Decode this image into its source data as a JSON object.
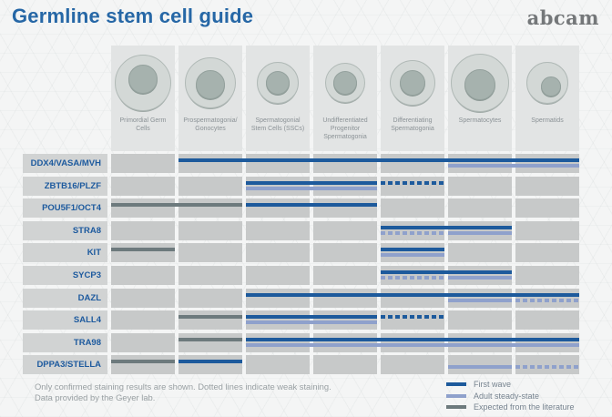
{
  "title": "Germline stem cell guide",
  "logo": "abcam",
  "colors": {
    "first_wave": "#1d5a9c",
    "adult_steady_state": "#8fa1cc",
    "literature": "#6d7a7d"
  },
  "stages": [
    {
      "label": "Primordial Germ Cells",
      "cell": {
        "outer": 62,
        "nucleus": 32,
        "nx": 0,
        "ny": -4
      }
    },
    {
      "label": "Prospermatogonia/ Gonocytes",
      "cell": {
        "outer": 56,
        "nucleus": 32,
        "nx": 0,
        "ny": 2
      }
    },
    {
      "label": "Spermatogonial Stem Cells (SSCs)",
      "cell": {
        "outer": 46,
        "nucleus": 26,
        "nx": 0,
        "ny": 0
      }
    },
    {
      "label": "Undifferentiated Progenitor Spermatogonia",
      "cell": {
        "outer": 44,
        "nucleus": 26,
        "nx": 0,
        "ny": 0
      }
    },
    {
      "label": "Differentiating Spermatogonia",
      "cell": {
        "outer": 50,
        "nucleus": 28,
        "nx": 0,
        "ny": 0
      }
    },
    {
      "label": "Spermatocytes",
      "cell": {
        "outer": 64,
        "nucleus": 34,
        "nx": 0,
        "ny": 2
      }
    },
    {
      "label": "Spermatids",
      "cell": {
        "outer": 46,
        "nucleus": 22,
        "nx": 4,
        "ny": 4
      }
    }
  ],
  "markers": [
    {
      "name": "DDX4/VASA/MVH",
      "segments": [
        {
          "track": 1,
          "color": "first_wave",
          "dash": false,
          "from": 2,
          "to": 7
        },
        {
          "track": 2,
          "color": "adult_steady_state",
          "dash": false,
          "from": 6,
          "to": 7
        }
      ]
    },
    {
      "name": "ZBTB16/PLZF",
      "segments": [
        {
          "track": 1,
          "color": "first_wave",
          "dash": false,
          "from": 3,
          "to": 4
        },
        {
          "track": 1,
          "color": "first_wave",
          "dash": true,
          "from": 5,
          "to": 5
        },
        {
          "track": 2,
          "color": "adult_steady_state",
          "dash": false,
          "from": 3,
          "to": 4
        }
      ]
    },
    {
      "name": "POU5F1/OCT4",
      "segments": [
        {
          "track": 1,
          "color": "literature",
          "dash": false,
          "from": 1,
          "to": 2
        },
        {
          "track": 1,
          "color": "first_wave",
          "dash": false,
          "from": 3,
          "to": 4
        }
      ]
    },
    {
      "name": "STRA8",
      "segments": [
        {
          "track": 1,
          "color": "first_wave",
          "dash": false,
          "from": 5,
          "to": 6
        },
        {
          "track": 2,
          "color": "adult_steady_state",
          "dash": true,
          "from": 5,
          "to": 5
        },
        {
          "track": 2,
          "color": "adult_steady_state",
          "dash": false,
          "from": 6,
          "to": 6
        }
      ]
    },
    {
      "name": "KIT",
      "segments": [
        {
          "track": 1,
          "color": "literature",
          "dash": false,
          "from": 1,
          "to": 1
        },
        {
          "track": 1,
          "color": "first_wave",
          "dash": false,
          "from": 5,
          "to": 5
        },
        {
          "track": 2,
          "color": "adult_steady_state",
          "dash": false,
          "from": 5,
          "to": 5
        }
      ]
    },
    {
      "name": "SYCP3",
      "segments": [
        {
          "track": 1,
          "color": "first_wave",
          "dash": false,
          "from": 5,
          "to": 6
        },
        {
          "track": 2,
          "color": "adult_steady_state",
          "dash": true,
          "from": 5,
          "to": 5
        },
        {
          "track": 2,
          "color": "adult_steady_state",
          "dash": false,
          "from": 6,
          "to": 6
        }
      ]
    },
    {
      "name": "DAZL",
      "segments": [
        {
          "track": 1,
          "color": "first_wave",
          "dash": false,
          "from": 3,
          "to": 7
        },
        {
          "track": 2,
          "color": "adult_steady_state",
          "dash": false,
          "from": 6,
          "to": 6
        },
        {
          "track": 2,
          "color": "adult_steady_state",
          "dash": true,
          "from": 7,
          "to": 7
        }
      ]
    },
    {
      "name": "SALL4",
      "segments": [
        {
          "track": 1,
          "color": "literature",
          "dash": false,
          "from": 2,
          "to": 2
        },
        {
          "track": 1,
          "color": "first_wave",
          "dash": false,
          "from": 3,
          "to": 4
        },
        {
          "track": 1,
          "color": "first_wave",
          "dash": true,
          "from": 5,
          "to": 5
        },
        {
          "track": 2,
          "color": "adult_steady_state",
          "dash": false,
          "from": 3,
          "to": 4
        }
      ]
    },
    {
      "name": "TRA98",
      "segments": [
        {
          "track": 1,
          "color": "literature",
          "dash": false,
          "from": 2,
          "to": 2
        },
        {
          "track": 1,
          "color": "first_wave",
          "dash": false,
          "from": 3,
          "to": 7
        },
        {
          "track": 2,
          "color": "adult_steady_state",
          "dash": false,
          "from": 3,
          "to": 7
        }
      ]
    },
    {
      "name": "DPPA3/STELLA",
      "segments": [
        {
          "track": 1,
          "color": "literature",
          "dash": false,
          "from": 1,
          "to": 1
        },
        {
          "track": 1,
          "color": "first_wave",
          "dash": false,
          "from": 2,
          "to": 2
        },
        {
          "track": 2,
          "color": "adult_steady_state",
          "dash": false,
          "from": 6,
          "to": 6
        },
        {
          "track": 2,
          "color": "adult_steady_state",
          "dash": true,
          "from": 7,
          "to": 7
        }
      ]
    }
  ],
  "legend": [
    {
      "key": "first_wave",
      "label": "First wave"
    },
    {
      "key": "adult_steady_state",
      "label": "Adult steady-state"
    },
    {
      "key": "literature",
      "label": "Expected from the literature"
    }
  ],
  "footnote": {
    "line1": "Only confirmed staining results are shown. Dotted lines indicate weak staining.",
    "line2": "Data provided by the Geyer lab."
  }
}
